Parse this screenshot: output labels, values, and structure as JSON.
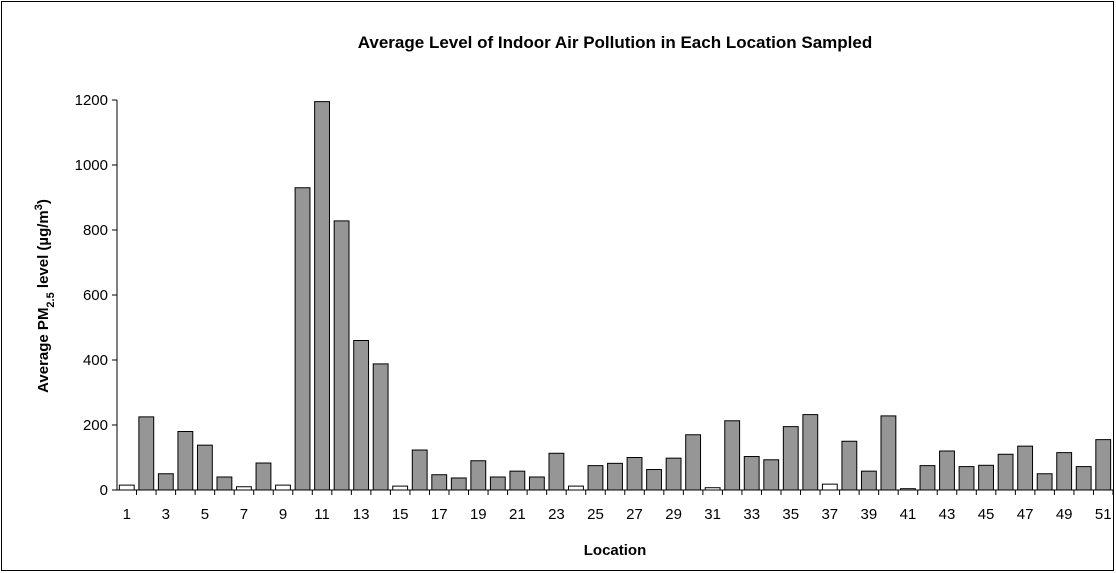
{
  "chart_data": {
    "type": "bar",
    "title": "Average Level of Indoor Air Pollution in Each Location Sampled",
    "x_label": "Location",
    "y_label": [
      {
        "text": "Average PM"
      },
      {
        "text": "2.5",
        "style": "sub"
      },
      {
        "text": " level (µg/m"
      },
      {
        "text": "3",
        "style": "super"
      },
      {
        "text": ")"
      }
    ],
    "categories": [
      "1",
      null,
      "3",
      null,
      "5",
      null,
      "7",
      null,
      "9",
      null,
      "11",
      null,
      "13",
      null,
      "15",
      null,
      "17",
      null,
      "19",
      null,
      "21",
      null,
      "23",
      null,
      "25",
      null,
      "27",
      null,
      "29",
      null,
      "31",
      null,
      "33",
      null,
      "35",
      null,
      "37",
      null,
      "39",
      null,
      "41",
      null,
      "43",
      null,
      "45",
      null,
      "47",
      null,
      "49",
      null,
      "51"
    ],
    "values": [
      15,
      225,
      50,
      180,
      138,
      40,
      10,
      83,
      15,
      930,
      1195,
      828,
      460,
      388,
      12,
      123,
      47,
      37,
      90,
      40,
      58,
      40,
      113,
      12,
      75,
      82,
      100,
      63,
      98,
      170,
      7,
      213,
      103,
      93,
      195,
      232,
      18,
      150,
      58,
      228,
      4,
      75,
      120,
      72,
      76,
      110,
      135,
      50,
      115,
      72,
      155
    ],
    "colors": [
      "#ffffff",
      "#969696",
      "#969696",
      "#969696",
      "#969696",
      "#969696",
      "#ffffff",
      "#969696",
      "#ffffff",
      "#969696",
      "#969696",
      "#969696",
      "#969696",
      "#969696",
      "#ffffff",
      "#969696",
      "#969696",
      "#969696",
      "#969696",
      "#969696",
      "#969696",
      "#969696",
      "#969696",
      "#ffffff",
      "#969696",
      "#969696",
      "#969696",
      "#969696",
      "#969696",
      "#969696",
      "#ffffff",
      "#969696",
      "#969696",
      "#969696",
      "#969696",
      "#969696",
      "#ffffff",
      "#969696",
      "#969696",
      "#969696",
      "#ffffff",
      "#969696",
      "#969696",
      "#969696",
      "#969696",
      "#969696",
      "#969696",
      "#969696",
      "#969696",
      "#969696",
      "#969696"
    ],
    "ylim": [
      0,
      1200
    ],
    "yticks": [
      0,
      200,
      400,
      600,
      800,
      1000,
      1200
    ],
    "grid": false
  }
}
